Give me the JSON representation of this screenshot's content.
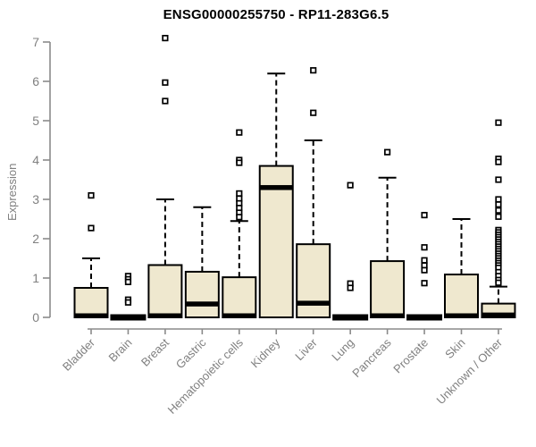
{
  "chart_data": {
    "type": "boxplot",
    "title": "ENSG00000255750 - RP11-283G6.5",
    "ylabel": "Expression",
    "xlabel": "",
    "ylim": [
      0,
      7
    ],
    "yticks": [
      0,
      1,
      2,
      3,
      4,
      5,
      6,
      7
    ],
    "grid": false,
    "legend": "none",
    "box_fill": "#efe8cf",
    "box_stroke": "#000000",
    "axis_color": "#8a8a8a",
    "label_color": "#808080",
    "categories": [
      "Bladder",
      "Brain",
      "Breast",
      "Gastric",
      "Hematopoietic cells",
      "Kidney",
      "Liver",
      "Lung",
      "Pancreas",
      "Prostate",
      "Skin",
      "Unknown / Other"
    ],
    "series": [
      {
        "label": "Bladder",
        "q1": 0,
        "median": 0.04,
        "q3": 0.75,
        "whisker_low": 0,
        "whisker_high": 1.5,
        "collapsed": false,
        "outliers": [
          3.1,
          2.27
        ]
      },
      {
        "label": "Brain",
        "q1": 0,
        "median": 0,
        "q3": 0,
        "whisker_low": 0,
        "whisker_high": 0,
        "collapsed": true,
        "outliers": [
          1.05,
          0.97,
          0.9,
          0.45,
          0.38
        ]
      },
      {
        "label": "Breast",
        "q1": 0,
        "median": 0.04,
        "q3": 1.33,
        "whisker_low": 0,
        "whisker_high": 3.0,
        "collapsed": false,
        "outliers": [
          7.1,
          5.97,
          5.5
        ]
      },
      {
        "label": "Gastric",
        "q1": 0,
        "median": 0.34,
        "q3": 1.16,
        "whisker_low": 0,
        "whisker_high": 2.8,
        "collapsed": false,
        "outliers": []
      },
      {
        "label": "Hematopoietic cells",
        "q1": 0,
        "median": 0.04,
        "q3": 1.02,
        "whisker_low": 0,
        "whisker_high": 2.45,
        "collapsed": false,
        "outliers": [
          4.7,
          4.0,
          3.93,
          3.15,
          3.02,
          2.9,
          2.78,
          2.66,
          2.55
        ]
      },
      {
        "label": "Kidney",
        "q1": 0,
        "median": 3.3,
        "q3": 3.85,
        "whisker_low": 0,
        "whisker_high": 6.2,
        "collapsed": false,
        "outliers": []
      },
      {
        "label": "Liver",
        "q1": 0,
        "median": 0.36,
        "q3": 1.86,
        "whisker_low": 0,
        "whisker_high": 4.5,
        "collapsed": false,
        "outliers": [
          6.28,
          5.2
        ]
      },
      {
        "label": "Lung",
        "q1": 0,
        "median": 0,
        "q3": 0,
        "whisker_low": 0,
        "whisker_high": 0,
        "collapsed": true,
        "outliers": [
          3.36,
          0.86,
          0.75
        ]
      },
      {
        "label": "Pancreas",
        "q1": 0,
        "median": 0.04,
        "q3": 1.43,
        "whisker_low": 0,
        "whisker_high": 3.55,
        "collapsed": false,
        "outliers": [
          4.2
        ]
      },
      {
        "label": "Prostate",
        "q1": 0,
        "median": 0,
        "q3": 0,
        "whisker_low": 0,
        "whisker_high": 0,
        "collapsed": true,
        "outliers": [
          2.6,
          1.78,
          1.45,
          1.32,
          1.2,
          0.87
        ]
      },
      {
        "label": "Skin",
        "q1": 0,
        "median": 0.04,
        "q3": 1.09,
        "whisker_low": 0,
        "whisker_high": 2.5,
        "collapsed": false,
        "outliers": []
      },
      {
        "label": "Unknown / Other",
        "q1": 0,
        "median": 0.06,
        "q3": 0.35,
        "whisker_low": 0,
        "whisker_high": 0.78,
        "collapsed": false,
        "outliers": [
          4.95,
          4.03,
          3.95,
          3.5,
          3.0,
          2.87,
          2.72,
          2.56,
          2.22,
          2.16,
          2.1,
          2.04,
          1.98,
          1.92,
          1.86,
          1.8,
          1.74,
          1.68,
          1.62,
          1.56,
          1.5,
          1.44,
          1.38,
          1.32,
          1.26,
          1.15,
          1.05,
          0.95,
          0.88
        ]
      }
    ]
  }
}
